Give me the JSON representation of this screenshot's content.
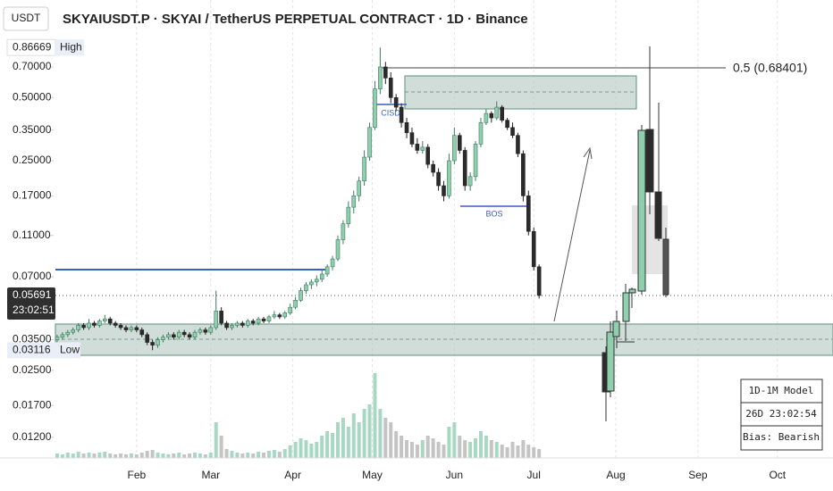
{
  "chart_data": {
    "type": "candlestick",
    "title": "SKYAIUSDT.P · SKYAI / TetherUS PERPETUAL CONTRACT · 1D · Binance",
    "currency": "USDT",
    "log_scale": true,
    "ylim": [
      0.00984,
      1.46
    ],
    "yticks": [
      {
        "value": 0.7,
        "label": "0.70000"
      },
      {
        "value": 0.5,
        "label": "0.50000"
      },
      {
        "value": 0.35,
        "label": "0.35000"
      },
      {
        "value": 0.25,
        "label": "0.25000"
      },
      {
        "value": 0.17,
        "label": "0.17000"
      },
      {
        "value": 0.11,
        "label": "0.11000"
      },
      {
        "value": 0.07,
        "label": "0.07000"
      },
      {
        "value": 0.035,
        "label": "0.03500"
      },
      {
        "value": 0.025,
        "label": "0.02500"
      },
      {
        "value": 0.017,
        "label": "0.01700"
      },
      {
        "value": 0.012,
        "label": "0.01200"
      }
    ],
    "xlim": [
      0,
      147
    ],
    "xticks": [
      {
        "value": 15.5,
        "label": "Feb"
      },
      {
        "value": 29.5,
        "label": "Mar"
      },
      {
        "value": 45,
        "label": "Apr"
      },
      {
        "value": 60,
        "label": "May"
      },
      {
        "value": 75.5,
        "label": "Jun"
      },
      {
        "value": 90.5,
        "label": "Jul"
      },
      {
        "value": 106,
        "label": "Aug"
      },
      {
        "value": 121.5,
        "label": "Sep"
      },
      {
        "value": 136.5,
        "label": "Oct"
      }
    ],
    "grid": "x",
    "up_color": "#8fcfae",
    "down_color": "#2b2b2b",
    "high": {
      "label": "High",
      "value": 0.86669
    },
    "low": {
      "label": "Low",
      "value": 0.03116
    },
    "last": {
      "value": 0.05691,
      "countdown": "23:02:51"
    },
    "fib_label": "0.5 (0.68401)",
    "annotations": [
      "CISD",
      "BOS"
    ],
    "info_box": [
      "1D-1M Model",
      "26D 23:02:54",
      "Bias: Bearish"
    ],
    "ohlc": [
      [
        0.035,
        0.037,
        0.034,
        0.036
      ],
      [
        0.036,
        0.038,
        0.035,
        0.037
      ],
      [
        0.037,
        0.039,
        0.036,
        0.038
      ],
      [
        0.038,
        0.04,
        0.037,
        0.039
      ],
      [
        0.039,
        0.042,
        0.038,
        0.041
      ],
      [
        0.041,
        0.042,
        0.039,
        0.04
      ],
      [
        0.04,
        0.044,
        0.039,
        0.042
      ],
      [
        0.042,
        0.043,
        0.04,
        0.041
      ],
      [
        0.041,
        0.044,
        0.04,
        0.043
      ],
      [
        0.043,
        0.046,
        0.042,
        0.044
      ],
      [
        0.044,
        0.045,
        0.041,
        0.042
      ],
      [
        0.042,
        0.043,
        0.04,
        0.041
      ],
      [
        0.041,
        0.042,
        0.039,
        0.04
      ],
      [
        0.04,
        0.041,
        0.038,
        0.039
      ],
      [
        0.039,
        0.041,
        0.038,
        0.04
      ],
      [
        0.04,
        0.041,
        0.038,
        0.039
      ],
      [
        0.039,
        0.04,
        0.036,
        0.037
      ],
      [
        0.037,
        0.038,
        0.033,
        0.034
      ],
      [
        0.034,
        0.035,
        0.0312,
        0.033
      ],
      [
        0.033,
        0.036,
        0.032,
        0.035
      ],
      [
        0.035,
        0.037,
        0.034,
        0.036
      ],
      [
        0.036,
        0.038,
        0.035,
        0.037
      ],
      [
        0.037,
        0.038,
        0.035,
        0.036
      ],
      [
        0.036,
        0.039,
        0.035,
        0.038
      ],
      [
        0.038,
        0.039,
        0.036,
        0.037
      ],
      [
        0.037,
        0.038,
        0.035,
        0.036
      ],
      [
        0.036,
        0.039,
        0.035,
        0.038
      ],
      [
        0.038,
        0.04,
        0.037,
        0.039
      ],
      [
        0.039,
        0.04,
        0.037,
        0.038
      ],
      [
        0.038,
        0.041,
        0.037,
        0.04
      ],
      [
        0.04,
        0.06,
        0.039,
        0.048
      ],
      [
        0.048,
        0.05,
        0.041,
        0.042
      ],
      [
        0.042,
        0.043,
        0.039,
        0.04
      ],
      [
        0.04,
        0.042,
        0.039,
        0.041
      ],
      [
        0.041,
        0.043,
        0.04,
        0.042
      ],
      [
        0.042,
        0.043,
        0.04,
        0.041
      ],
      [
        0.041,
        0.044,
        0.04,
        0.043
      ],
      [
        0.043,
        0.044,
        0.041,
        0.042
      ],
      [
        0.042,
        0.045,
        0.041,
        0.044
      ],
      [
        0.044,
        0.045,
        0.042,
        0.043
      ],
      [
        0.043,
        0.046,
        0.042,
        0.045
      ],
      [
        0.045,
        0.048,
        0.044,
        0.046
      ],
      [
        0.046,
        0.047,
        0.044,
        0.045
      ],
      [
        0.045,
        0.048,
        0.044,
        0.047
      ],
      [
        0.047,
        0.052,
        0.046,
        0.05
      ],
      [
        0.05,
        0.056,
        0.049,
        0.054
      ],
      [
        0.054,
        0.062,
        0.053,
        0.06
      ],
      [
        0.06,
        0.066,
        0.058,
        0.064
      ],
      [
        0.064,
        0.068,
        0.061,
        0.066
      ],
      [
        0.066,
        0.071,
        0.063,
        0.068
      ],
      [
        0.068,
        0.076,
        0.066,
        0.072
      ],
      [
        0.072,
        0.08,
        0.07,
        0.078
      ],
      [
        0.078,
        0.088,
        0.075,
        0.085
      ],
      [
        0.085,
        0.11,
        0.083,
        0.105
      ],
      [
        0.105,
        0.13,
        0.1,
        0.125
      ],
      [
        0.125,
        0.16,
        0.12,
        0.15
      ],
      [
        0.15,
        0.18,
        0.14,
        0.17
      ],
      [
        0.17,
        0.21,
        0.16,
        0.2
      ],
      [
        0.2,
        0.28,
        0.19,
        0.26
      ],
      [
        0.26,
        0.38,
        0.25,
        0.36
      ],
      [
        0.36,
        0.6,
        0.35,
        0.55
      ],
      [
        0.55,
        0.86669,
        0.52,
        0.7
      ],
      [
        0.7,
        0.74,
        0.58,
        0.62
      ],
      [
        0.62,
        0.66,
        0.47,
        0.5
      ],
      [
        0.5,
        0.52,
        0.43,
        0.45
      ],
      [
        0.45,
        0.47,
        0.36,
        0.38
      ],
      [
        0.38,
        0.4,
        0.32,
        0.34
      ],
      [
        0.34,
        0.36,
        0.29,
        0.3
      ],
      [
        0.3,
        0.32,
        0.27,
        0.28
      ],
      [
        0.28,
        0.31,
        0.27,
        0.29
      ],
      [
        0.29,
        0.3,
        0.23,
        0.24
      ],
      [
        0.24,
        0.25,
        0.21,
        0.22
      ],
      [
        0.22,
        0.23,
        0.18,
        0.19
      ],
      [
        0.19,
        0.2,
        0.16,
        0.17
      ],
      [
        0.17,
        0.27,
        0.165,
        0.25
      ],
      [
        0.25,
        0.36,
        0.24,
        0.33
      ],
      [
        0.33,
        0.34,
        0.27,
        0.28
      ],
      [
        0.28,
        0.29,
        0.18,
        0.19
      ],
      [
        0.19,
        0.22,
        0.18,
        0.21
      ],
      [
        0.21,
        0.31,
        0.2,
        0.3
      ],
      [
        0.3,
        0.4,
        0.29,
        0.38
      ],
      [
        0.38,
        0.44,
        0.37,
        0.42
      ],
      [
        0.42,
        0.43,
        0.38,
        0.4
      ],
      [
        0.4,
        0.48,
        0.39,
        0.45
      ],
      [
        0.45,
        0.46,
        0.38,
        0.39
      ],
      [
        0.39,
        0.4,
        0.35,
        0.36
      ],
      [
        0.36,
        0.38,
        0.32,
        0.33
      ],
      [
        0.33,
        0.34,
        0.26,
        0.27
      ],
      [
        0.27,
        0.28,
        0.16,
        0.17
      ],
      [
        0.17,
        0.18,
        0.11,
        0.115
      ],
      [
        0.115,
        0.12,
        0.075,
        0.078
      ],
      [
        0.078,
        0.08,
        0.055,
        0.05691
      ]
    ],
    "volume_lim": [
      0,
      100
    ],
    "volume": [
      5,
      4,
      6,
      5,
      7,
      5,
      6,
      5,
      6,
      7,
      5,
      4,
      5,
      4,
      5,
      4,
      6,
      8,
      9,
      6,
      5,
      4,
      5,
      6,
      4,
      5,
      6,
      5,
      4,
      6,
      40,
      25,
      10,
      8,
      6,
      5,
      6,
      5,
      7,
      6,
      8,
      9,
      7,
      10,
      14,
      18,
      22,
      20,
      16,
      18,
      25,
      30,
      28,
      40,
      45,
      35,
      50,
      40,
      55,
      60,
      95,
      55,
      45,
      40,
      30,
      25,
      20,
      18,
      15,
      20,
      25,
      22,
      18,
      15,
      35,
      40,
      25,
      20,
      18,
      22,
      30,
      25,
      20,
      18,
      15,
      12,
      18,
      14,
      20,
      15,
      12,
      10
    ]
  }
}
